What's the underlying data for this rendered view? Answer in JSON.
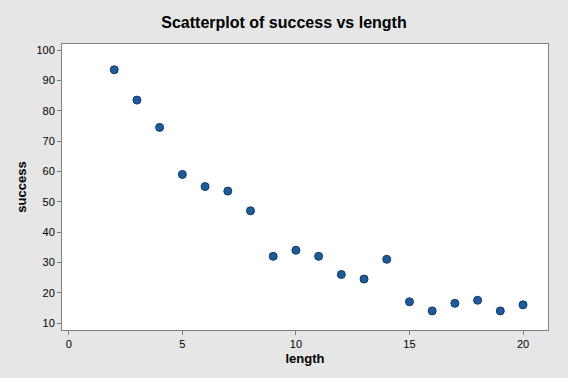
{
  "chart_data": {
    "type": "scatter",
    "title": "Scatterplot of success vs length",
    "x_label": "length",
    "y_label": "success",
    "x": [
      2,
      3,
      4,
      5,
      6,
      7,
      8,
      9,
      10,
      11,
      12,
      13,
      14,
      15,
      16,
      17,
      18,
      19,
      20
    ],
    "values": [
      93.5,
      83.5,
      74.5,
      59,
      55,
      53.5,
      47,
      32,
      34,
      32,
      26,
      24.5,
      31,
      17,
      14,
      16.5,
      17.5,
      14,
      16
    ],
    "color": "#1f5b99",
    "marker": "circle",
    "xlim": [
      -0.3,
      21.1
    ],
    "xticks": [
      0,
      5,
      10,
      15,
      20
    ],
    "ylim": [
      7.7,
      102
    ],
    "yticks": [
      10,
      20,
      30,
      40,
      50,
      60,
      70,
      80,
      90,
      100
    ],
    "grid": false
  }
}
